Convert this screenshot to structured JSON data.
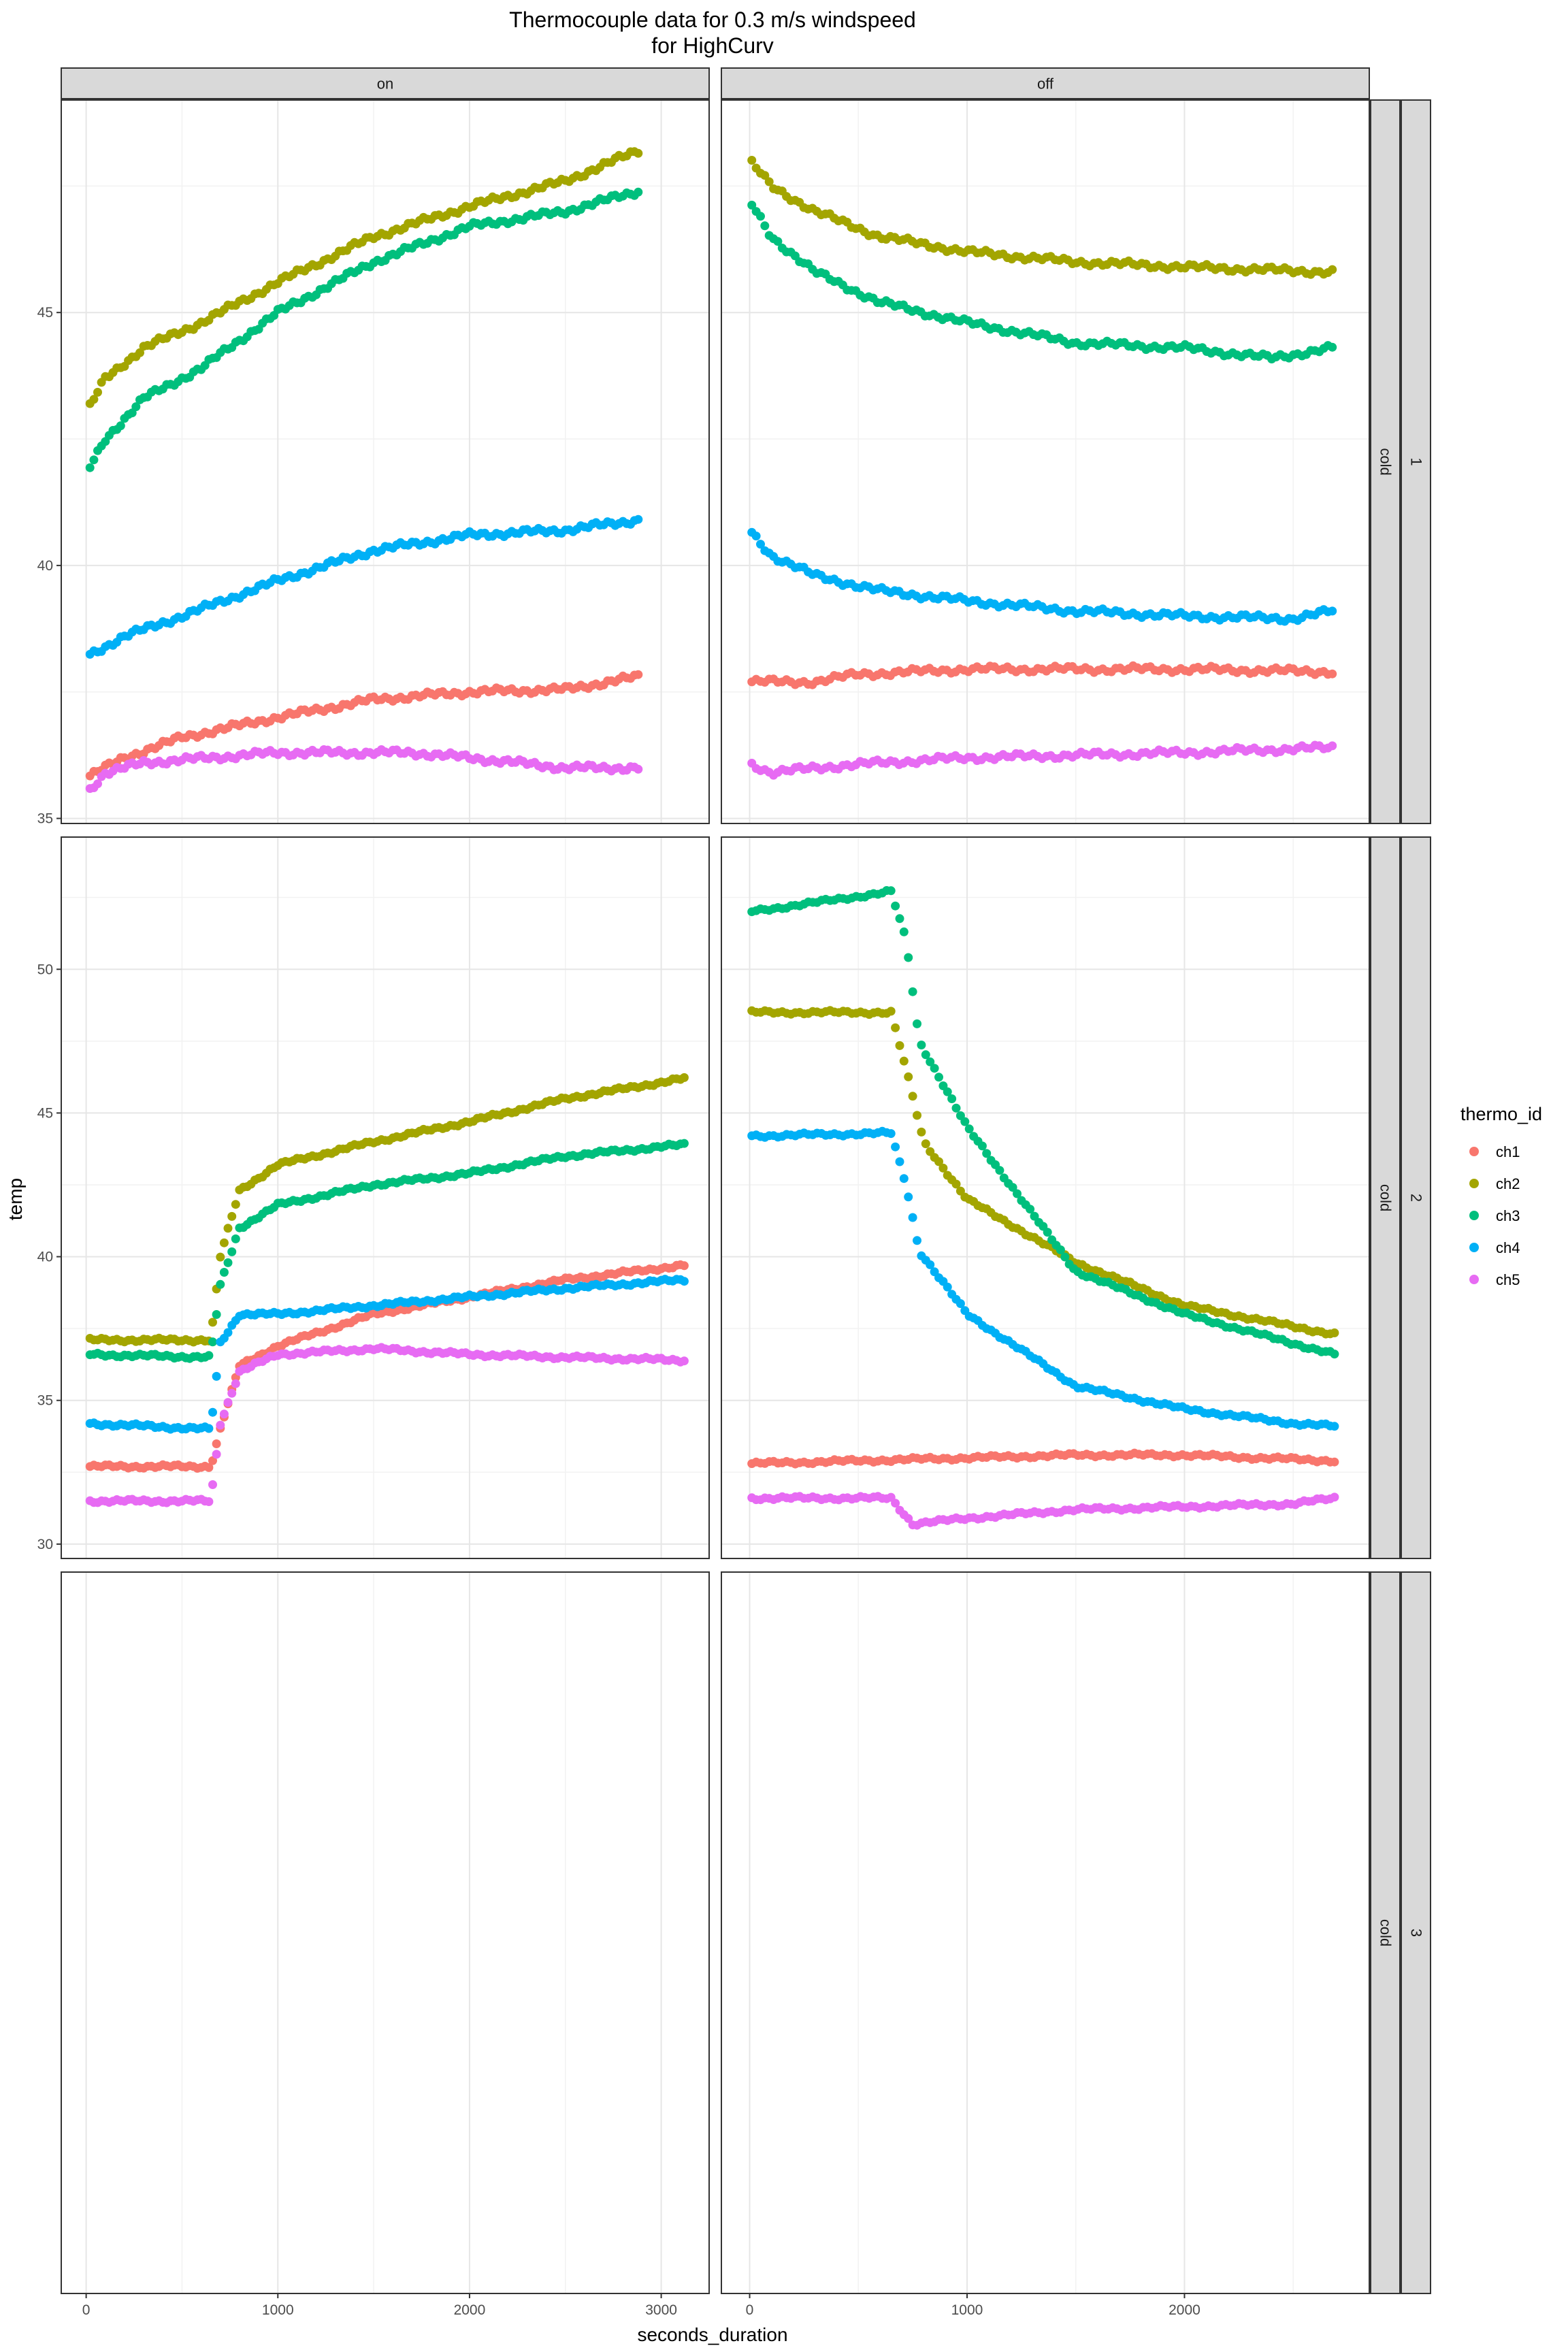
{
  "chart_data": {
    "type": "scatter",
    "title_line1": "Thermocouple data for 0.3 m/s windspeed",
    "title_line2": "for HighCurv",
    "xlabel": "seconds_duration",
    "ylabel": "temp",
    "legend": {
      "title": "thermo_id",
      "placement": "right",
      "entries": [
        {
          "name": "ch1",
          "color": "#F8766D"
        },
        {
          "name": "ch2",
          "color": "#A3A500"
        },
        {
          "name": "ch3",
          "color": "#00BF7D"
        },
        {
          "name": "ch4",
          "color": "#00B0F6"
        },
        {
          "name": "ch5",
          "color": "#E76BF3"
        }
      ]
    },
    "grid": true,
    "facet_cols": [
      "on",
      "off"
    ],
    "facet_rows": [
      {
        "label_outer": "1",
        "label_inner": "cold"
      },
      {
        "label_outer": "2",
        "label_inner": "cold"
      },
      {
        "label_outer": "3",
        "label_inner": "cold"
      }
    ],
    "xlim_cols": [
      [
        -130,
        3250
      ],
      [
        -130,
        2850
      ]
    ],
    "x_ticks_cols": [
      [
        0,
        1000,
        2000,
        3000
      ],
      [
        0,
        1000,
        2000
      ]
    ],
    "ylim_rows": [
      [
        34.9,
        49.2
      ],
      [
        29.5,
        54.6
      ],
      [
        0,
        1
      ]
    ],
    "y_ticks_rows": [
      [
        35,
        40,
        45
      ],
      [
        30,
        35,
        40,
        45,
        50
      ],
      []
    ],
    "panels": [
      {
        "col": "on",
        "row": "1",
        "series": [
          {
            "name": "ch1",
            "x_range": [
              20,
              2880
            ],
            "curve": [
              [
                0,
                35.8
              ],
              [
                200,
                36.2
              ],
              [
                500,
                36.6
              ],
              [
                1000,
                37.0
              ],
              [
                1500,
                37.35
              ],
              [
                2000,
                37.5
              ],
              [
                2500,
                37.55
              ],
              [
                2880,
                37.8
              ]
            ]
          },
          {
            "name": "ch2",
            "x_range": [
              20,
              2880
            ],
            "curve": [
              [
                0,
                43.0
              ],
              [
                100,
                43.7
              ],
              [
                300,
                44.3
              ],
              [
                600,
                44.8
              ],
              [
                1000,
                45.6
              ],
              [
                1500,
                46.5
              ],
              [
                2000,
                47.1
              ],
              [
                2500,
                47.6
              ],
              [
                2880,
                48.2
              ]
            ]
          },
          {
            "name": "ch3",
            "x_range": [
              20,
              2880
            ],
            "curve": [
              [
                0,
                41.8
              ],
              [
                100,
                42.5
              ],
              [
                300,
                43.3
              ],
              [
                600,
                43.9
              ],
              [
                1000,
                45.0
              ],
              [
                1500,
                46.0
              ],
              [
                2000,
                46.7
              ],
              [
                2500,
                47.0
              ],
              [
                2880,
                47.4
              ]
            ]
          },
          {
            "name": "ch4",
            "x_range": [
              20,
              2880
            ],
            "curve": [
              [
                0,
                38.2
              ],
              [
                200,
                38.6
              ],
              [
                500,
                39.0
              ],
              [
                1000,
                39.7
              ],
              [
                1500,
                40.3
              ],
              [
                2000,
                40.6
              ],
              [
                2500,
                40.7
              ],
              [
                2880,
                40.9
              ]
            ]
          },
          {
            "name": "ch5",
            "x_range": [
              20,
              2880
            ],
            "curve": [
              [
                0,
                35.5
              ],
              [
                100,
                35.9
              ],
              [
                300,
                36.1
              ],
              [
                1000,
                36.3
              ],
              [
                1700,
                36.3
              ],
              [
                2000,
                36.2
              ],
              [
                2500,
                36.0
              ],
              [
                2880,
                36.0
              ]
            ]
          }
        ]
      },
      {
        "col": "off",
        "row": "1",
        "series": [
          {
            "name": "ch1",
            "x_range": [
              10,
              2680
            ],
            "curve": [
              [
                0,
                37.7
              ],
              [
                300,
                37.7
              ],
              [
                500,
                37.85
              ],
              [
                1000,
                37.95
              ],
              [
                2000,
                37.95
              ],
              [
                2680,
                37.9
              ]
            ]
          },
          {
            "name": "ch2",
            "x_range": [
              10,
              2680
            ],
            "curve": [
              [
                0,
                48.0
              ],
              [
                100,
                47.5
              ],
              [
                300,
                47.0
              ],
              [
                600,
                46.5
              ],
              [
                1000,
                46.2
              ],
              [
                1500,
                46.0
              ],
              [
                2000,
                45.9
              ],
              [
                2680,
                45.8
              ]
            ]
          },
          {
            "name": "ch3",
            "x_range": [
              10,
              2680
            ],
            "curve": [
              [
                0,
                47.2
              ],
              [
                100,
                46.5
              ],
              [
                300,
                45.8
              ],
              [
                600,
                45.2
              ],
              [
                1000,
                44.8
              ],
              [
                1500,
                44.4
              ],
              [
                2000,
                44.3
              ],
              [
                2400,
                44.1
              ],
              [
                2680,
                44.3
              ]
            ]
          },
          {
            "name": "ch4",
            "x_range": [
              10,
              2680
            ],
            "curve": [
              [
                0,
                40.7
              ],
              [
                100,
                40.2
              ],
              [
                300,
                39.8
              ],
              [
                600,
                39.5
              ],
              [
                1000,
                39.3
              ],
              [
                1500,
                39.1
              ],
              [
                2000,
                39.0
              ],
              [
                2500,
                38.95
              ],
              [
                2680,
                39.1
              ]
            ]
          },
          {
            "name": "ch5",
            "x_range": [
              10,
              2680
            ],
            "curve": [
              [
                0,
                36.1
              ],
              [
                100,
                35.9
              ],
              [
                300,
                36.0
              ],
              [
                600,
                36.1
              ],
              [
                1000,
                36.2
              ],
              [
                1500,
                36.25
              ],
              [
                2000,
                36.3
              ],
              [
                2680,
                36.4
              ]
            ]
          }
        ]
      },
      {
        "col": "on",
        "row": "2",
        "series": [
          {
            "name": "ch1",
            "x_range": [
              20,
              3120
            ],
            "curve": [
              [
                0,
                32.7
              ],
              [
                650,
                32.7
              ],
              [
                700,
                34.0
              ],
              [
                800,
                36.2
              ],
              [
                1000,
                36.9
              ],
              [
                1500,
                38.0
              ],
              [
                2000,
                38.6
              ],
              [
                2500,
                39.2
              ],
              [
                3120,
                39.7
              ]
            ]
          },
          {
            "name": "ch2",
            "x_range": [
              20,
              3120
            ],
            "curve": [
              [
                0,
                37.1
              ],
              [
                650,
                37.1
              ],
              [
                700,
                40.0
              ],
              [
                800,
                42.3
              ],
              [
                1000,
                43.2
              ],
              [
                1500,
                44.0
              ],
              [
                2000,
                44.7
              ],
              [
                2500,
                45.5
              ],
              [
                3120,
                46.2
              ]
            ]
          },
          {
            "name": "ch3",
            "x_range": [
              20,
              3120
            ],
            "curve": [
              [
                0,
                36.6
              ],
              [
                650,
                36.5
              ],
              [
                700,
                39.0
              ],
              [
                800,
                41.0
              ],
              [
                1000,
                41.8
              ],
              [
                1500,
                42.5
              ],
              [
                2000,
                42.9
              ],
              [
                2500,
                43.5
              ],
              [
                3120,
                43.9
              ]
            ]
          },
          {
            "name": "ch4",
            "x_range": [
              20,
              3120
            ],
            "curve": [
              [
                0,
                34.2
              ],
              [
                650,
                34.0
              ],
              [
                700,
                37.0
              ],
              [
                800,
                38.0
              ],
              [
                1000,
                38.0
              ],
              [
                1500,
                38.3
              ],
              [
                2000,
                38.6
              ],
              [
                2500,
                38.9
              ],
              [
                3120,
                39.2
              ]
            ]
          },
          {
            "name": "ch5",
            "x_range": [
              20,
              3120
            ],
            "curve": [
              [
                0,
                31.5
              ],
              [
                650,
                31.5
              ],
              [
                700,
                34.2
              ],
              [
                800,
                36.0
              ],
              [
                1000,
                36.6
              ],
              [
                1500,
                36.8
              ],
              [
                2000,
                36.6
              ],
              [
                2500,
                36.5
              ],
              [
                3120,
                36.4
              ]
            ]
          }
        ]
      },
      {
        "col": "off",
        "row": "2",
        "series": [
          {
            "name": "ch1",
            "x_range": [
              10,
              2690
            ],
            "curve": [
              [
                0,
                32.8
              ],
              [
                500,
                32.9
              ],
              [
                1000,
                33.0
              ],
              [
                1500,
                33.1
              ],
              [
                2000,
                33.1
              ],
              [
                2690,
                32.9
              ]
            ]
          },
          {
            "name": "ch2",
            "x_range": [
              10,
              2690
            ],
            "curve": [
              [
                0,
                48.5
              ],
              [
                650,
                48.5
              ],
              [
                720,
                46.5
              ],
              [
                800,
                44.0
              ],
              [
                1000,
                42.0
              ],
              [
                1500,
                39.8
              ],
              [
                2000,
                38.3
              ],
              [
                2690,
                37.3
              ]
            ]
          },
          {
            "name": "ch3",
            "x_range": [
              10,
              2690
            ],
            "curve": [
              [
                0,
                52.0
              ],
              [
                650,
                52.7
              ],
              [
                720,
                51.0
              ],
              [
                780,
                47.5
              ],
              [
                1000,
                44.5
              ],
              [
                1500,
                39.5
              ],
              [
                2000,
                38.0
              ],
              [
                2690,
                36.6
              ]
            ]
          },
          {
            "name": "ch4",
            "x_range": [
              10,
              2690
            ],
            "curve": [
              [
                0,
                44.2
              ],
              [
                650,
                44.3
              ],
              [
                720,
                42.5
              ],
              [
                780,
                40.2
              ],
              [
                1000,
                38.0
              ],
              [
                1500,
                35.5
              ],
              [
                2000,
                34.7
              ],
              [
                2500,
                34.2
              ],
              [
                2690,
                34.1
              ]
            ]
          },
          {
            "name": "ch5",
            "x_range": [
              10,
              2690
            ],
            "curve": [
              [
                0,
                31.6
              ],
              [
                650,
                31.6
              ],
              [
                750,
                30.7
              ],
              [
                1000,
                30.9
              ],
              [
                1500,
                31.2
              ],
              [
                2000,
                31.3
              ],
              [
                2500,
                31.4
              ],
              [
                2690,
                31.6
              ]
            ]
          }
        ]
      },
      {
        "col": "on",
        "row": "3",
        "series": []
      },
      {
        "col": "off",
        "row": "3",
        "series": []
      }
    ]
  }
}
